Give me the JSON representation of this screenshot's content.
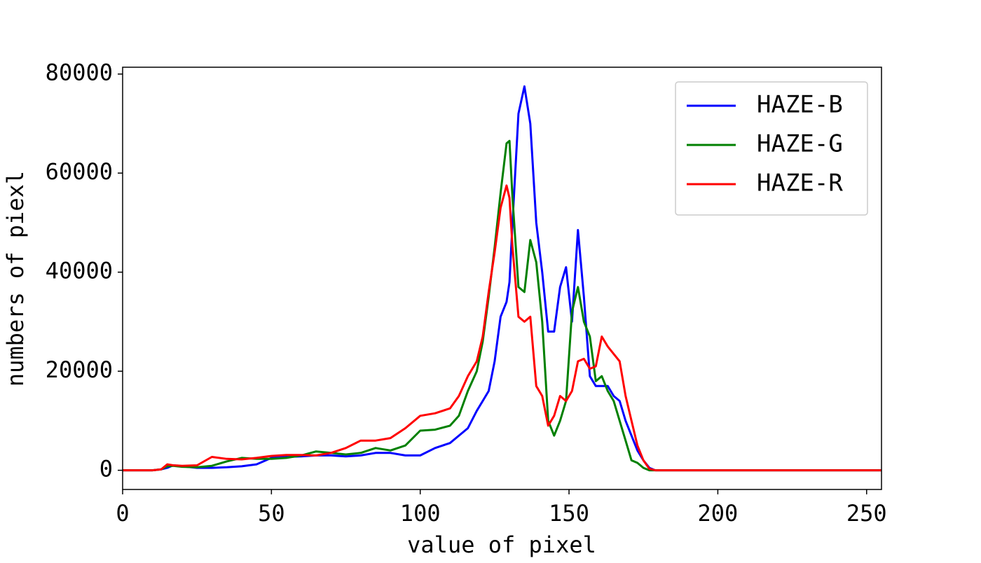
{
  "chart_data": {
    "type": "line",
    "xlabel": "value of pixel",
    "ylabel": "numbers of piexl",
    "x": [
      0,
      5,
      10,
      13,
      15,
      17,
      20,
      25,
      30,
      35,
      40,
      45,
      50,
      55,
      60,
      65,
      70,
      75,
      80,
      85,
      90,
      95,
      100,
      105,
      110,
      113,
      116,
      119,
      121,
      123,
      125,
      127,
      129,
      130,
      131,
      133,
      135,
      137,
      139,
      141,
      143,
      145,
      147,
      149,
      151,
      153,
      155,
      157,
      159,
      161,
      163,
      165,
      167,
      169,
      171,
      173,
      175,
      177,
      179,
      185,
      200,
      255
    ],
    "series": [
      {
        "name": "HAZE-B",
        "color": "#0000ff",
        "values": [
          0,
          0,
          0,
          200,
          500,
          1000,
          800,
          500,
          500,
          600,
          800,
          1200,
          2500,
          2700,
          2800,
          3000,
          3000,
          2800,
          3000,
          3500,
          3500,
          3000,
          3000,
          4500,
          5500,
          7000,
          8500,
          12000,
          14000,
          16000,
          22000,
          31000,
          34000,
          38000,
          50000,
          72000,
          77500,
          70000,
          50000,
          40000,
          28000,
          28000,
          37000,
          41000,
          30000,
          48500,
          35000,
          19000,
          17000,
          17000,
          17000,
          15000,
          14000,
          10000,
          7000,
          4000,
          2000,
          500,
          0,
          0,
          0,
          0
        ]
      },
      {
        "name": "HAZE-G",
        "color": "#008000",
        "values": [
          0,
          0,
          0,
          200,
          800,
          900,
          700,
          600,
          900,
          1800,
          2500,
          2300,
          2300,
          2500,
          3000,
          3800,
          3500,
          3200,
          3500,
          4500,
          4000,
          5000,
          8000,
          8200,
          9000,
          11000,
          16000,
          20000,
          26000,
          35000,
          45000,
          56000,
          66000,
          66500,
          55000,
          37000,
          36000,
          46500,
          42000,
          30000,
          10000,
          7000,
          10000,
          14000,
          32000,
          37000,
          30000,
          27000,
          18000,
          19000,
          16000,
          14000,
          10000,
          6000,
          2000,
          1500,
          500,
          0,
          0,
          0,
          0,
          0
        ]
      },
      {
        "name": "HAZE-R",
        "color": "#ff0000",
        "values": [
          0,
          0,
          0,
          200,
          1200,
          1000,
          900,
          1000,
          2700,
          2300,
          2200,
          2500,
          2900,
          3100,
          3100,
          3000,
          3500,
          4500,
          6000,
          6000,
          6500,
          8500,
          11000,
          11500,
          12500,
          15000,
          19000,
          22000,
          27000,
          36000,
          44000,
          53000,
          57500,
          55000,
          45000,
          31000,
          30000,
          31000,
          17000,
          15000,
          9000,
          11000,
          15000,
          14000,
          16000,
          22000,
          22500,
          20500,
          21000,
          27000,
          25000,
          23500,
          22000,
          15000,
          10000,
          5000,
          2000,
          300,
          0,
          0,
          0,
          0
        ]
      }
    ],
    "xlim": [
      0,
      255
    ],
    "xticks": [
      0,
      50,
      100,
      150,
      200,
      250
    ],
    "ylim": [
      -3875,
      81375
    ],
    "yticks": [
      0,
      20000,
      40000,
      60000,
      80000
    ],
    "legend": "upper right"
  }
}
